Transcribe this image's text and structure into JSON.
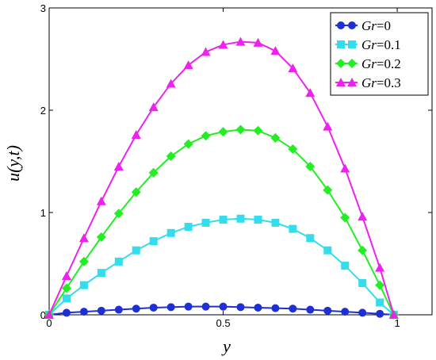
{
  "chart_data": {
    "type": "line",
    "xlabel": "y",
    "ylabel": "u(y,t)",
    "xlim": [
      0,
      1.1
    ],
    "ylim": [
      0,
      3
    ],
    "xticks": [
      0,
      0.5,
      1
    ],
    "yticks": [
      0,
      1,
      2,
      3
    ],
    "xtick_labels": [
      "0",
      "0.5",
      "1"
    ],
    "ytick_labels": [
      "0",
      "1",
      "2",
      "3"
    ],
    "grid": false,
    "legend_position": "top-right",
    "x": [
      0,
      0.05,
      0.1,
      0.15,
      0.2,
      0.25,
      0.3,
      0.35,
      0.4,
      0.45,
      0.5,
      0.55,
      0.6,
      0.65,
      0.7,
      0.75,
      0.8,
      0.85,
      0.9,
      0.95,
      0.99
    ],
    "series": [
      {
        "name_var": "Gr",
        "name_val": "=0",
        "marker": "circle",
        "color": "#1f2fd6",
        "values": [
          0,
          0.02,
          0.03,
          0.04,
          0.05,
          0.06,
          0.07,
          0.075,
          0.08,
          0.08,
          0.08,
          0.075,
          0.07,
          0.065,
          0.06,
          0.05,
          0.04,
          0.03,
          0.02,
          0.01,
          0
        ]
      },
      {
        "name_var": "Gr",
        "name_val": "=0.1",
        "marker": "square",
        "color": "#33ddee",
        "values": [
          0,
          0.16,
          0.29,
          0.41,
          0.52,
          0.63,
          0.72,
          0.8,
          0.86,
          0.9,
          0.93,
          0.94,
          0.93,
          0.9,
          0.84,
          0.75,
          0.63,
          0.48,
          0.31,
          0.12,
          0
        ]
      },
      {
        "name_var": "Gr",
        "name_val": "=0.2",
        "marker": "diamond",
        "color": "#22ee22",
        "values": [
          0,
          0.26,
          0.52,
          0.76,
          0.99,
          1.2,
          1.39,
          1.55,
          1.67,
          1.75,
          1.79,
          1.81,
          1.8,
          1.73,
          1.62,
          1.45,
          1.22,
          0.95,
          0.63,
          0.29,
          0
        ]
      },
      {
        "name_var": "Gr",
        "name_val": "=0.3",
        "marker": "triangle",
        "color": "#ee22ee",
        "values": [
          0,
          0.38,
          0.75,
          1.11,
          1.45,
          1.76,
          2.03,
          2.26,
          2.44,
          2.57,
          2.64,
          2.67,
          2.66,
          2.58,
          2.41,
          2.17,
          1.84,
          1.43,
          0.96,
          0.46,
          0
        ]
      }
    ]
  }
}
